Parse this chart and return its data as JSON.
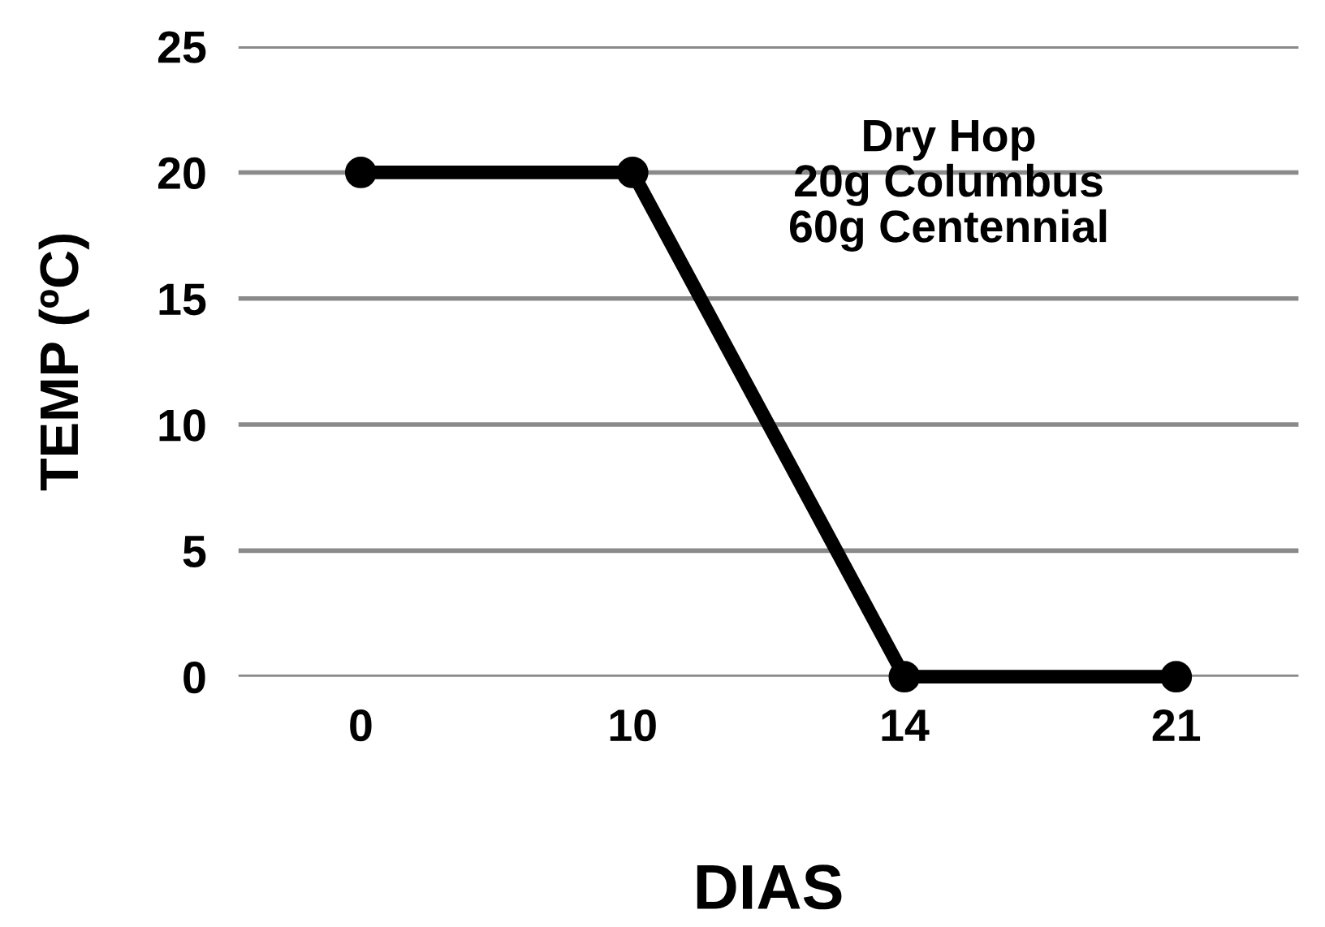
{
  "chart_data": {
    "type": "line",
    "xlabel": "DIAS",
    "ylabel": "TEMP (ºC)",
    "categories": [
      "0",
      "10",
      "14",
      "21"
    ],
    "series": [
      {
        "color": "#000000",
        "values": [
          20,
          20,
          0,
          0
        ]
      }
    ],
    "ylim": [
      0,
      25
    ],
    "yticks": [
      0,
      5,
      10,
      15,
      20,
      25
    ],
    "grid": "y",
    "marker": "circle",
    "line_style": "solid",
    "annotations": [
      "Dry Hop\n20g Columbus\n60g Centennial"
    ]
  }
}
